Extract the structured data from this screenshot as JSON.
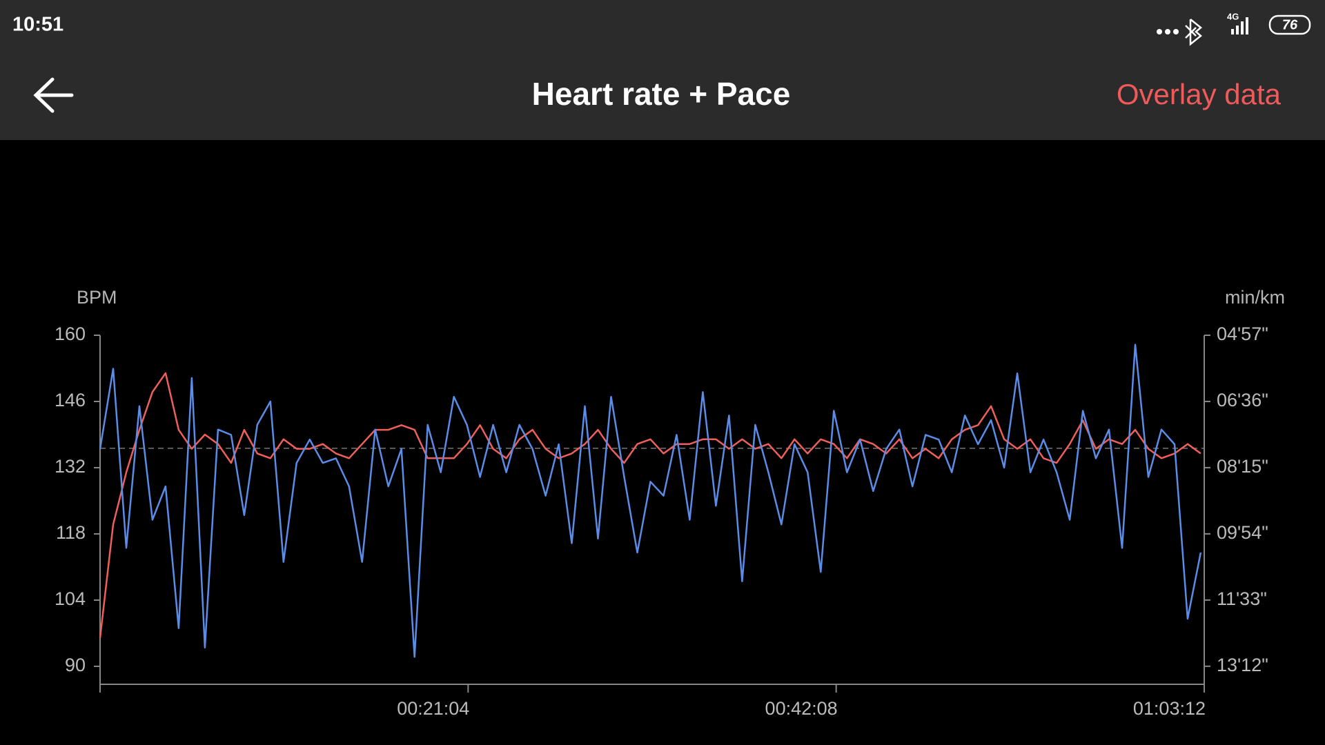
{
  "status_bar": {
    "time": "10:51",
    "network": "4G",
    "battery": "76"
  },
  "header": {
    "title": "Heart rate + Pace",
    "action": "Overlay data"
  },
  "chart_data": {
    "type": "line",
    "y_label": "BPM",
    "y2_label": "min/km",
    "x": [
      0,
      45,
      90,
      135,
      180,
      225,
      270,
      315,
      360,
      405,
      450,
      495,
      540,
      585,
      630,
      675,
      720,
      765,
      810,
      855,
      900,
      945,
      990,
      1035,
      1080,
      1125,
      1170,
      1215,
      1260,
      1305,
      1350,
      1395,
      1440,
      1485,
      1530,
      1575,
      1620,
      1665,
      1710,
      1755,
      1800,
      1845,
      1890,
      1935,
      1980,
      2025,
      2070,
      2115,
      2160,
      2205,
      2250,
      2295,
      2340,
      2385,
      2430,
      2475,
      2520,
      2565,
      2610,
      2655,
      2700,
      2745,
      2790,
      2835,
      2880,
      2925,
      2970,
      3015,
      3060,
      3105,
      3150,
      3195,
      3240,
      3285,
      3330,
      3375,
      3420,
      3465,
      3510,
      3555,
      3600,
      3645,
      3690,
      3735,
      3780
    ],
    "xlim": [
      0,
      3792
    ],
    "xticks": [
      {
        "value": 1264,
        "label": "00:21:04"
      },
      {
        "value": 2528,
        "label": "00:42:08"
      },
      {
        "value": 3792,
        "label": "01:03:12"
      }
    ],
    "ylim": [
      86.2,
      160
    ],
    "yticks": [
      90,
      104,
      118,
      132,
      146,
      160
    ],
    "y2lim": [
      819,
      297
    ],
    "y2ticks": [
      {
        "value": 297,
        "label": "04'57\""
      },
      {
        "value": 396,
        "label": "06'36\""
      },
      {
        "value": 495,
        "label": "08'15\""
      },
      {
        "value": 594,
        "label": "09'54\""
      },
      {
        "value": 693,
        "label": "11'33\""
      },
      {
        "value": 792,
        "label": "13'12\""
      }
    ],
    "average_line": 136.1,
    "series": [
      {
        "color": "#f0605a",
        "values": [
          96,
          120,
          131,
          140,
          148,
          152,
          140,
          136,
          139,
          137,
          133,
          140,
          135,
          134,
          138,
          136,
          136,
          137,
          135,
          134,
          137,
          140,
          140,
          141,
          140,
          134,
          134,
          134,
          137,
          141,
          136,
          134,
          138,
          140,
          136,
          134,
          135,
          137,
          140,
          136,
          133,
          137,
          138,
          135,
          137,
          137,
          138,
          138,
          136,
          138,
          136,
          137,
          134,
          138,
          135,
          138,
          137,
          134,
          138,
          137,
          135,
          138,
          134,
          136,
          134,
          138,
          140,
          141,
          145,
          138,
          136,
          138,
          134,
          133,
          137,
          142,
          136,
          138,
          137,
          140,
          136,
          134,
          135,
          137,
          135
        ]
      },
      {
        "color": "#5b8de8",
        "axis": "y2",
        "values": [
          467,
          347,
          615,
          403,
          573,
          523,
          735,
          361,
          764,
          438,
          446,
          566,
          431,
          396,
          636,
          488,
          453,
          488,
          481,
          523,
          636,
          438,
          523,
          467,
          778,
          431,
          502,
          389,
          431,
          509,
          431,
          502,
          431,
          467,
          537,
          460,
          608,
          403,
          601,
          389,
          509,
          622,
          516,
          537,
          446,
          573,
          382,
          552,
          417,
          665,
          431,
          502,
          580,
          460,
          502,
          651,
          410,
          502,
          453,
          530,
          467,
          438,
          523,
          446,
          453,
          502,
          417,
          460,
          424,
          495,
          354,
          502,
          453,
          502,
          573,
          410,
          481,
          438,
          615,
          311,
          509,
          438,
          460,
          721,
          622
        ]
      }
    ]
  }
}
